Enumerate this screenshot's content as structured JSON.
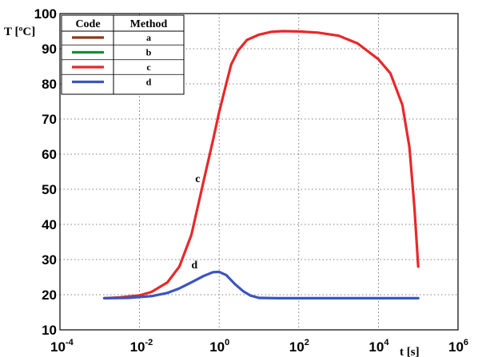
{
  "chart_data": {
    "type": "line",
    "x_scale": "log",
    "xlim": [
      0.0001,
      1000000
    ],
    "ylim": [
      10,
      100
    ],
    "xlabel": "t [s]",
    "ylabel": "T [ºC]",
    "grid": true,
    "y_ticks": [
      "10",
      "20",
      "30",
      "40",
      "50",
      "60",
      "70",
      "80",
      "90",
      "100"
    ],
    "x_ticks": [
      {
        "base": "10",
        "exp": "-4"
      },
      {
        "base": "10",
        "exp": "-2"
      },
      {
        "base": "10",
        "exp": "0"
      },
      {
        "base": "10",
        "exp": "2"
      },
      {
        "base": "10",
        "exp": "4"
      },
      {
        "base": "10",
        "exp": "6"
      }
    ],
    "legend": {
      "placement": "top-left",
      "header_code": "Code",
      "header_method": "Method",
      "entries": [
        {
          "method": "a",
          "color": "#8B3A1A"
        },
        {
          "method": "b",
          "color": "#1E8A3C"
        },
        {
          "method": "c",
          "color": "#E8282A"
        },
        {
          "method": "d",
          "color": "#3A55C0"
        }
      ]
    },
    "series": [
      {
        "name": "c",
        "color": "#E8282A",
        "points": [
          [
            0.0013,
            19.0
          ],
          [
            0.003,
            19.2
          ],
          [
            0.01,
            19.8
          ],
          [
            0.02,
            20.8
          ],
          [
            0.05,
            23.5
          ],
          [
            0.1,
            28.0
          ],
          [
            0.2,
            37.0
          ],
          [
            0.4,
            52.0
          ],
          [
            0.7,
            64.0
          ],
          [
            1.0,
            72.0
          ],
          [
            1.5,
            80.0
          ],
          [
            2.0,
            85.5
          ],
          [
            3.0,
            89.5
          ],
          [
            5.0,
            92.5
          ],
          [
            10,
            94.0
          ],
          [
            20,
            94.8
          ],
          [
            40,
            95.0
          ],
          [
            100,
            94.9
          ],
          [
            300,
            94.6
          ],
          [
            1000,
            93.7
          ],
          [
            3000,
            91.5
          ],
          [
            10000,
            87.0
          ],
          [
            20000,
            83.0
          ],
          [
            40000,
            74.0
          ],
          [
            60000,
            62.0
          ],
          [
            80000,
            45.0
          ],
          [
            100000,
            28.0
          ]
        ]
      },
      {
        "name": "d",
        "color": "#3A55C0",
        "points": [
          [
            0.0013,
            19.0
          ],
          [
            0.005,
            19.1
          ],
          [
            0.02,
            19.6
          ],
          [
            0.05,
            20.5
          ],
          [
            0.1,
            21.8
          ],
          [
            0.2,
            23.5
          ],
          [
            0.4,
            25.3
          ],
          [
            0.7,
            26.4
          ],
          [
            1.0,
            26.5
          ],
          [
            1.5,
            25.6
          ],
          [
            2.5,
            23.0
          ],
          [
            4.0,
            21.0
          ],
          [
            6.0,
            19.8
          ],
          [
            10,
            19.1
          ],
          [
            30,
            19.0
          ],
          [
            1000,
            19.0
          ],
          [
            100000,
            19.0
          ]
        ]
      }
    ],
    "annotations": [
      {
        "text": "c",
        "x": 0.25,
        "y": 52
      },
      {
        "text": "d",
        "x": 0.2,
        "y": 27.5
      }
    ]
  }
}
